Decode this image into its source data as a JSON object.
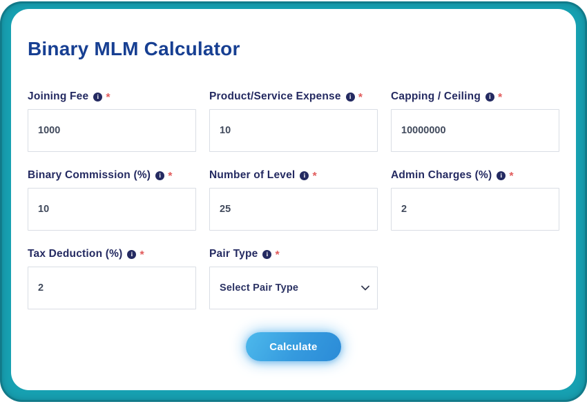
{
  "page": {
    "title": "Binary MLM Calculator"
  },
  "form": {
    "required_marker": "*",
    "info_glyph": "i",
    "fields": [
      {
        "id": "joining-fee",
        "label": "Joining Fee",
        "type": "input",
        "value": "1000"
      },
      {
        "id": "product-service-expense",
        "label": "Product/Service Expense",
        "type": "input",
        "value": "10"
      },
      {
        "id": "capping-ceiling",
        "label": "Capping / Ceiling",
        "type": "input",
        "value": "10000000"
      },
      {
        "id": "binary-commission",
        "label": "Binary Commission (%)",
        "type": "input",
        "value": "10"
      },
      {
        "id": "number-of-level",
        "label": "Number of Level",
        "type": "input",
        "value": "25"
      },
      {
        "id": "admin-charges",
        "label": "Admin Charges (%)",
        "type": "input",
        "value": "2"
      },
      {
        "id": "tax-deduction",
        "label": "Tax Deduction (%)",
        "type": "input",
        "value": "2"
      },
      {
        "id": "pair-type",
        "label": "Pair Type",
        "type": "select",
        "value": "Select Pair Type"
      }
    ]
  },
  "actions": {
    "calculate_label": "Calculate"
  },
  "colors": {
    "frame_teal": "#17a0b1",
    "title_blue": "#173f92",
    "label_navy": "#242a61",
    "required_red": "#e15b5b",
    "button_gradient_start": "#4db9ec",
    "button_gradient_end": "#2b8bd7"
  }
}
